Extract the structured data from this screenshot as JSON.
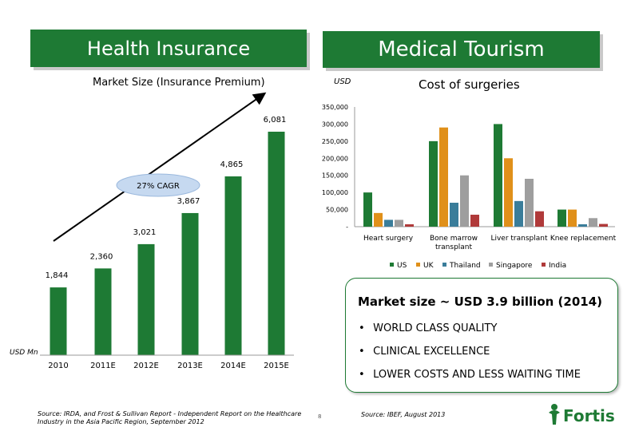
{
  "banners": {
    "left": "Health Insurance",
    "right": "Medical Tourism"
  },
  "left_chart": {
    "subtitle": "Market Size (Insurance Premium)",
    "cagr_label": "27% CAGR",
    "unit_label": "USD Mn",
    "source": "Source: IRDA, and Frost & Sullivan Report - Independent Report on the Healthcare Industry in the Asia Pacific Region, September 2012",
    "bar_color": "#1e7a34"
  },
  "right_chart": {
    "unit_label": "USD",
    "title": "Cost of surgeries",
    "y_ticks": [
      "350,000",
      "300,000",
      "250,000",
      "200,000",
      "150,000",
      "100,000",
      "50,000",
      "-"
    ],
    "source": "Source: IBEF, August 2013",
    "series_colors": {
      "US": "#1e7a34",
      "UK": "#e0901a",
      "Thailand": "#3a7d9a",
      "Singapore": "#9e9e9e",
      "India": "#b03a3a"
    }
  },
  "info": {
    "title": "Market size ~ USD 3.9 billion (2014)",
    "bullets": [
      "WORLD CLASS QUALITY",
      "CLINICAL EXCELLENCE",
      "LOWER COSTS AND LESS WAITING TIME"
    ]
  },
  "footer": {
    "page_number": "8",
    "logo_text": "Fortis"
  },
  "chart_data": [
    {
      "type": "bar",
      "title": "Market Size (Insurance Premium)",
      "ylabel": "USD Mn",
      "categories": [
        "2010",
        "2011E",
        "2012E",
        "2013E",
        "2014E",
        "2015E"
      ],
      "values": [
        1844,
        2360,
        3021,
        3867,
        4865,
        6081
      ],
      "value_labels": [
        "1,844",
        "2,360",
        "3,021",
        "3,867",
        "4,865",
        "6,081"
      ],
      "annotation": "27% CAGR",
      "ylim": [
        0,
        6500
      ]
    },
    {
      "type": "bar",
      "title": "Cost of surgeries",
      "ylabel": "USD",
      "categories": [
        "Heart surgery",
        "Bone marrow transplant",
        "Liver transplant",
        "Knee replacement"
      ],
      "series": [
        {
          "name": "US",
          "values": [
            100000,
            250000,
            300000,
            50000
          ]
        },
        {
          "name": "UK",
          "values": [
            40000,
            290000,
            200000,
            50000
          ]
        },
        {
          "name": "Thailand",
          "values": [
            20000,
            70000,
            75000,
            7000
          ]
        },
        {
          "name": "Singapore",
          "values": [
            20000,
            150000,
            140000,
            25000
          ]
        },
        {
          "name": "India",
          "values": [
            7000,
            35000,
            45000,
            8000
          ]
        }
      ],
      "ylim": [
        0,
        350000
      ],
      "legend": "bottom"
    }
  ]
}
